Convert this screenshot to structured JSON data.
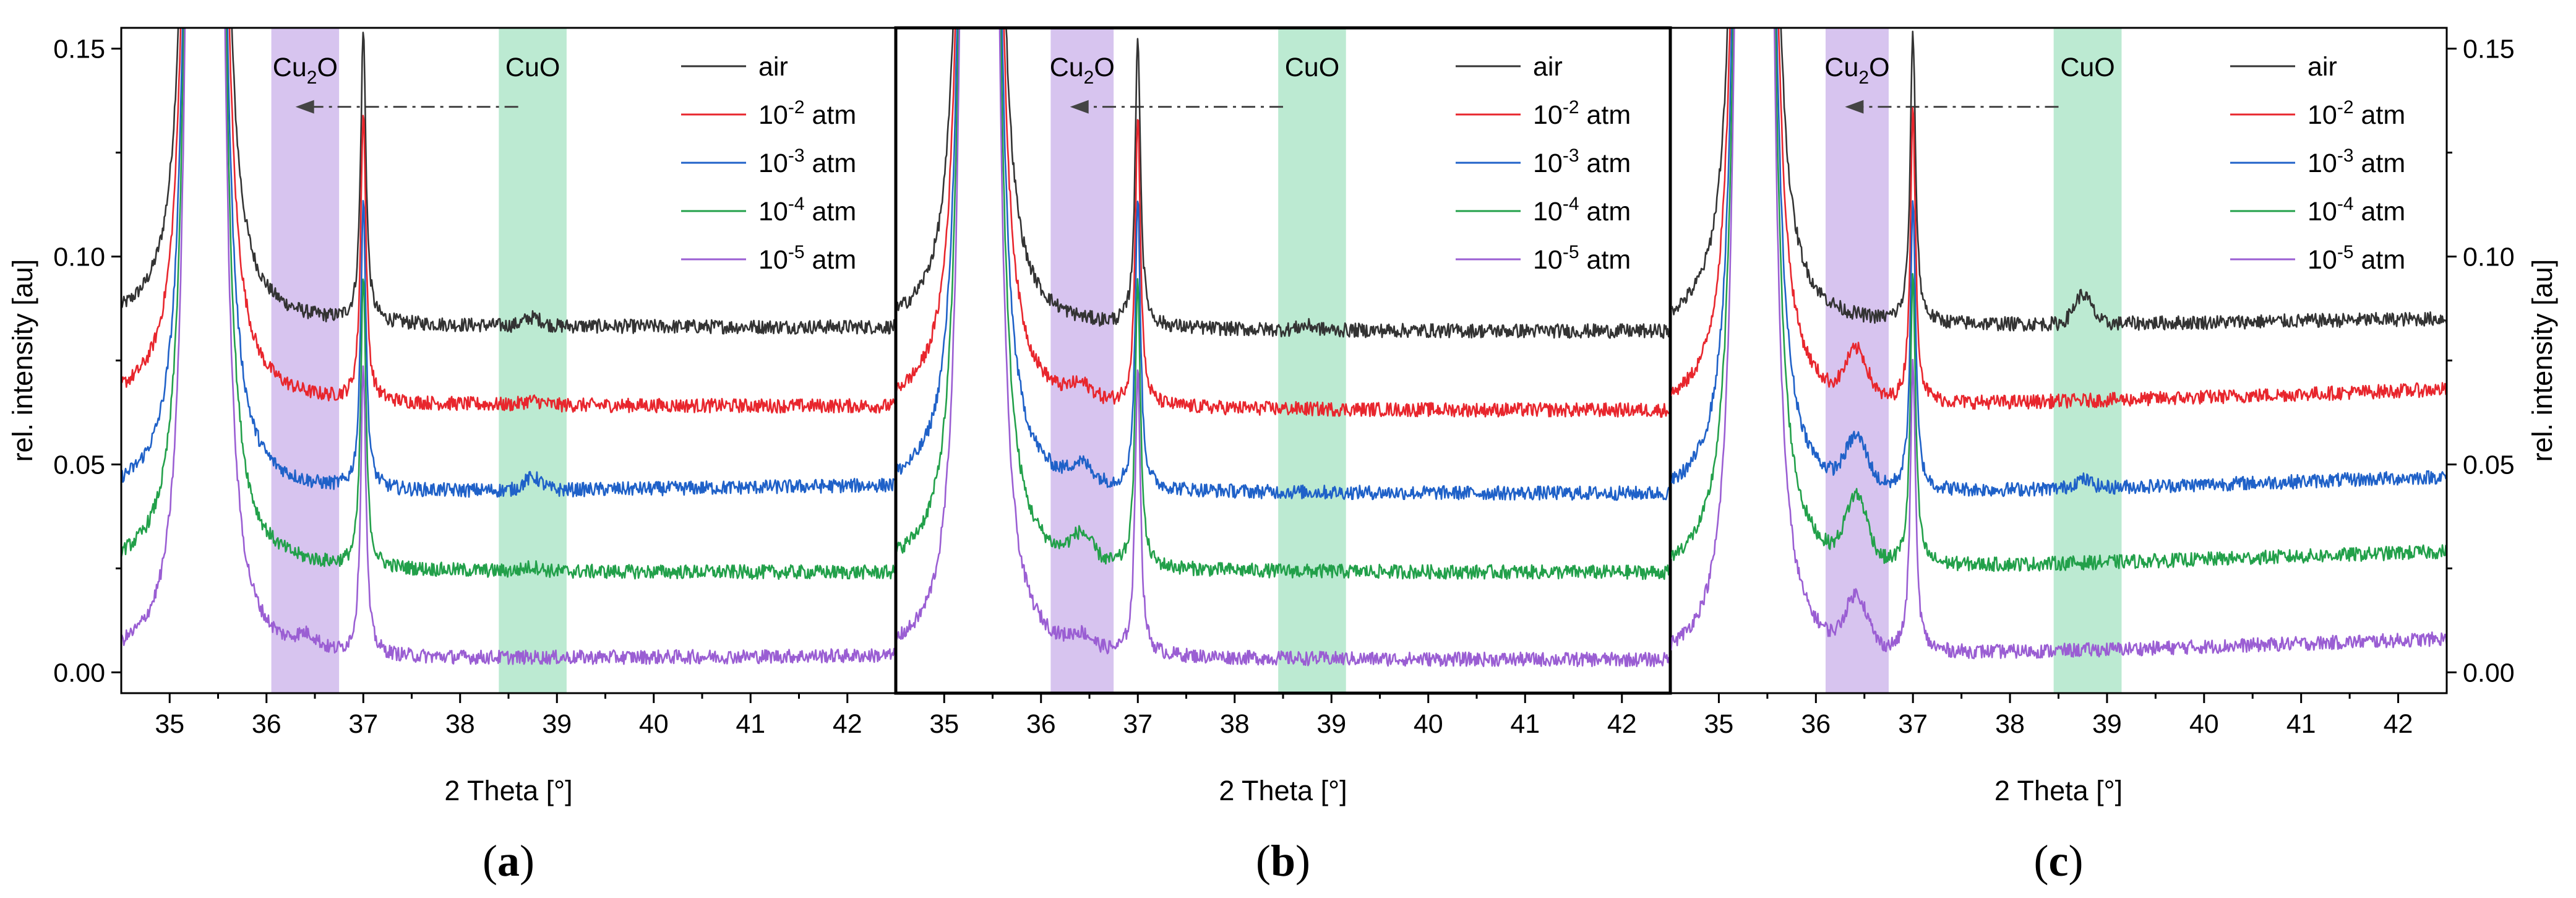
{
  "chart_data": [
    {
      "panel": "a",
      "type": "line",
      "xlabel": "2 Theta [°]",
      "ylabel": "rel. intensity [au]",
      "xlim": [
        34.5,
        42.5
      ],
      "ylim": [
        -0.005,
        0.155
      ],
      "xticks": [
        "35",
        "36",
        "37",
        "38",
        "39",
        "40",
        "41",
        "42"
      ],
      "yticks": [
        "0.00",
        "0.05",
        "0.10",
        "0.15"
      ],
      "bands": [
        {
          "label": "Cu",
          "sub": "2",
          "suffix": "O",
          "from": 36.05,
          "to": 36.75,
          "color": "#c9b0ea"
        },
        {
          "label": "CuO",
          "sub": "",
          "suffix": "",
          "from": 38.4,
          "to": 39.1,
          "color": "#a6e3c3"
        }
      ],
      "arrow": {
        "from": 38.6,
        "to": 36.3,
        "y": 0.136
      },
      "legend": [
        {
          "base": "air",
          "exp": "",
          "unit": ""
        },
        {
          "base": "10",
          "exp": "-2",
          "unit": " atm"
        },
        {
          "base": "10",
          "exp": "-3",
          "unit": " atm"
        },
        {
          "base": "10",
          "exp": "-4",
          "unit": " atm"
        },
        {
          "base": "10",
          "exp": "-5",
          "unit": " atm"
        }
      ],
      "series": [
        {
          "name": "air",
          "color": "#333333",
          "offset": 0.083,
          "cu2o": 0.0,
          "cuo": 0.002,
          "tilt": 0.0
        },
        {
          "name": "10-2 atm",
          "color": "#e8262d",
          "offset": 0.064,
          "cu2o": 0.0,
          "cuo": 0.001,
          "tilt": 0.0
        },
        {
          "name": "10-3 atm",
          "color": "#1f61c8",
          "offset": 0.043,
          "cu2o": 0.0,
          "cuo": 0.003,
          "tilt": 0.002
        },
        {
          "name": "10-4 atm",
          "color": "#22a04a",
          "offset": 0.024,
          "cu2o": 0.0,
          "cuo": 0.001,
          "tilt": 0.0
        },
        {
          "name": "10-5 atm",
          "color": "#9a5ed3",
          "offset": 0.003,
          "cu2o": 0.003,
          "cuo": 0.0,
          "tilt": 0.001
        }
      ],
      "letter": "a"
    },
    {
      "panel": "b",
      "type": "line",
      "xlabel": "2 Theta [°]",
      "ylabel": "",
      "xlim": [
        34.5,
        42.5
      ],
      "ylim": [
        -0.005,
        0.155
      ],
      "xticks": [
        "35",
        "36",
        "37",
        "38",
        "39",
        "40",
        "41",
        "42"
      ],
      "yticks": [],
      "bands": [
        {
          "label": "Cu",
          "sub": "2",
          "suffix": "O",
          "from": 36.1,
          "to": 36.75,
          "color": "#c9b0ea"
        },
        {
          "label": "CuO",
          "sub": "",
          "suffix": "",
          "from": 38.45,
          "to": 39.15,
          "color": "#a6e3c3"
        }
      ],
      "arrow": {
        "from": 38.5,
        "to": 36.3,
        "y": 0.136
      },
      "legend": [
        {
          "base": "air",
          "exp": "",
          "unit": ""
        },
        {
          "base": "10",
          "exp": "-2",
          "unit": " atm"
        },
        {
          "base": "10",
          "exp": "-3",
          "unit": " atm"
        },
        {
          "base": "10",
          "exp": "-4",
          "unit": " atm"
        },
        {
          "base": "10",
          "exp": "-5",
          "unit": " atm"
        }
      ],
      "series": [
        {
          "name": "air",
          "color": "#333333",
          "offset": 0.082,
          "cu2o": 0.0,
          "cuo": 0.001,
          "tilt": 0.0
        },
        {
          "name": "10-2 atm",
          "color": "#e8262d",
          "offset": 0.063,
          "cu2o": 0.003,
          "cuo": 0.0,
          "tilt": 0.0
        },
        {
          "name": "10-3 atm",
          "color": "#1f61c8",
          "offset": 0.043,
          "cu2o": 0.004,
          "cuo": 0.0,
          "tilt": 0.0
        },
        {
          "name": "10-4 atm",
          "color": "#22a04a",
          "offset": 0.024,
          "cu2o": 0.006,
          "cuo": 0.0,
          "tilt": 0.0
        },
        {
          "name": "10-5 atm",
          "color": "#9a5ed3",
          "offset": 0.003,
          "cu2o": 0.003,
          "cuo": 0.0,
          "tilt": 0.0
        }
      ],
      "letter": "b"
    },
    {
      "panel": "c",
      "type": "line",
      "xlabel": "2 Theta [°]",
      "ylabel": "rel. intensity [au]",
      "xlim": [
        34.5,
        42.5
      ],
      "ylim": [
        -0.005,
        0.155
      ],
      "xticks": [
        "35",
        "36",
        "37",
        "38",
        "39",
        "40",
        "41",
        "42"
      ],
      "yticks": [
        "0.00",
        "0.05",
        "0.10",
        "0.15"
      ],
      "bands": [
        {
          "label": "Cu",
          "sub": "2",
          "suffix": "O",
          "from": 36.1,
          "to": 36.75,
          "color": "#c9b0ea"
        },
        {
          "label": "CuO",
          "sub": "",
          "suffix": "",
          "from": 38.45,
          "to": 39.15,
          "color": "#a6e3c3"
        }
      ],
      "arrow": {
        "from": 38.5,
        "to": 36.3,
        "y": 0.136
      },
      "legend": [
        {
          "base": "air",
          "exp": "",
          "unit": ""
        },
        {
          "base": "10",
          "exp": "-2",
          "unit": " atm"
        },
        {
          "base": "10",
          "exp": "-3",
          "unit": " atm"
        },
        {
          "base": "10",
          "exp": "-4",
          "unit": " atm"
        },
        {
          "base": "10",
          "exp": "-5",
          "unit": " atm"
        }
      ],
      "series": [
        {
          "name": "air",
          "color": "#333333",
          "offset": 0.083,
          "cu2o": 0.0,
          "cuo": 0.007,
          "tilt": 0.002
        },
        {
          "name": "10-2 atm",
          "color": "#e8262d",
          "offset": 0.064,
          "cu2o": 0.011,
          "cuo": 0.0,
          "tilt": 0.004
        },
        {
          "name": "10-3 atm",
          "color": "#1f61c8",
          "offset": 0.043,
          "cu2o": 0.011,
          "cuo": 0.002,
          "tilt": 0.004
        },
        {
          "name": "10-4 atm",
          "color": "#22a04a",
          "offset": 0.025,
          "cu2o": 0.015,
          "cuo": 0.0,
          "tilt": 0.004
        },
        {
          "name": "10-5 atm",
          "color": "#9a5ed3",
          "offset": 0.004,
          "cu2o": 0.012,
          "cuo": 0.0,
          "tilt": 0.004
        }
      ],
      "letter": "c"
    }
  ]
}
